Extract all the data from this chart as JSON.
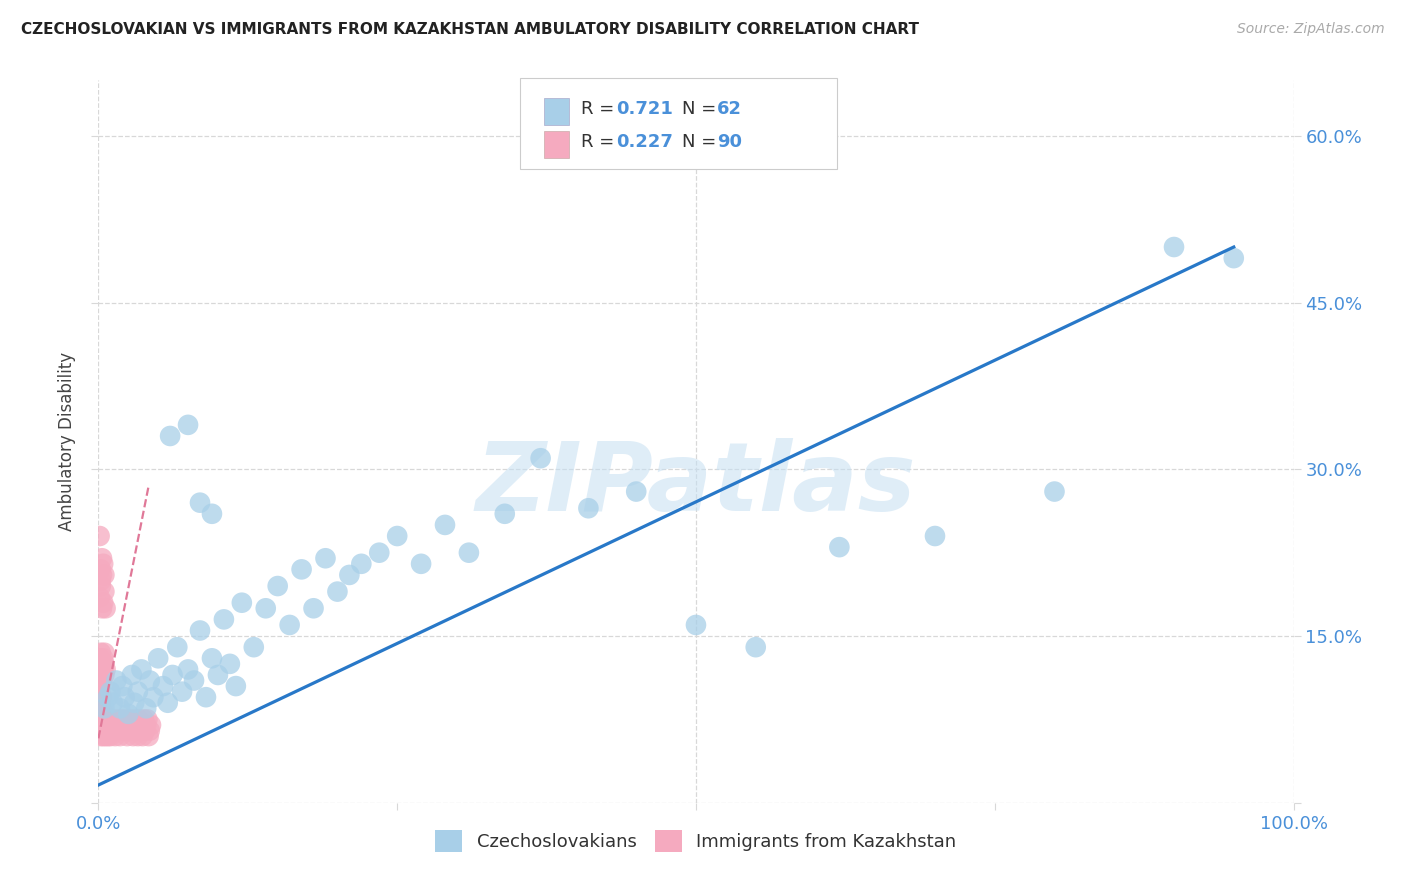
{
  "title": "CZECHOSLOVAKIAN VS IMMIGRANTS FROM KAZAKHSTAN AMBULATORY DISABILITY CORRELATION CHART",
  "source": "Source: ZipAtlas.com",
  "ylabel": "Ambulatory Disability",
  "background_color": "#ffffff",
  "grid_color": "#d8d8d8",
  "watermark": "ZIPatlas",
  "xmin": 0.0,
  "xmax": 1.0,
  "ymin": 0.0,
  "ymax": 0.65,
  "xticks": [
    0.0,
    0.25,
    0.5,
    0.75,
    1.0
  ],
  "xticklabels": [
    "0.0%",
    "",
    "",
    "",
    "100.0%"
  ],
  "ytick_vals": [
    0.0,
    0.15,
    0.3,
    0.45,
    0.6
  ],
  "yticklabels_right": [
    "",
    "15.0%",
    "30.0%",
    "45.0%",
    "60.0%"
  ],
  "tick_color": "#4a90d9",
  "blue_color": "#a8cfe8",
  "blue_line_color": "#2878c8",
  "pink_color": "#f5aabf",
  "pink_line_color": "#e07898",
  "legend_R_blue": "0.721",
  "legend_N_blue": "62",
  "legend_R_pink": "0.227",
  "legend_N_pink": "90",
  "legend_label_blue": "Czechoslovakians",
  "legend_label_pink": "Immigrants from Kazakhstan",
  "blue_scatter_x": [
    0.005,
    0.008,
    0.01,
    0.012,
    0.015,
    0.018,
    0.02,
    0.022,
    0.025,
    0.028,
    0.03,
    0.033,
    0.036,
    0.04,
    0.043,
    0.046,
    0.05,
    0.054,
    0.058,
    0.062,
    0.066,
    0.07,
    0.075,
    0.08,
    0.085,
    0.09,
    0.095,
    0.1,
    0.105,
    0.11,
    0.115,
    0.12,
    0.13,
    0.14,
    0.15,
    0.16,
    0.17,
    0.18,
    0.19,
    0.2,
    0.21,
    0.22,
    0.235,
    0.25,
    0.27,
    0.29,
    0.31,
    0.34,
    0.37,
    0.41,
    0.45,
    0.5,
    0.55,
    0.62,
    0.7,
    0.8,
    0.9,
    0.95,
    0.06,
    0.075,
    0.085,
    0.095
  ],
  "blue_scatter_y": [
    0.085,
    0.095,
    0.1,
    0.09,
    0.11,
    0.085,
    0.105,
    0.095,
    0.08,
    0.115,
    0.09,
    0.1,
    0.12,
    0.085,
    0.11,
    0.095,
    0.13,
    0.105,
    0.09,
    0.115,
    0.14,
    0.1,
    0.12,
    0.11,
    0.155,
    0.095,
    0.13,
    0.115,
    0.165,
    0.125,
    0.105,
    0.18,
    0.14,
    0.175,
    0.195,
    0.16,
    0.21,
    0.175,
    0.22,
    0.19,
    0.205,
    0.215,
    0.225,
    0.24,
    0.215,
    0.25,
    0.225,
    0.26,
    0.31,
    0.265,
    0.28,
    0.16,
    0.14,
    0.23,
    0.24,
    0.28,
    0.5,
    0.49,
    0.33,
    0.34,
    0.27,
    0.26
  ],
  "pink_scatter_x": [
    0.001,
    0.001,
    0.002,
    0.002,
    0.002,
    0.003,
    0.003,
    0.003,
    0.004,
    0.004,
    0.005,
    0.005,
    0.005,
    0.006,
    0.006,
    0.007,
    0.007,
    0.008,
    0.008,
    0.009,
    0.009,
    0.01,
    0.01,
    0.011,
    0.012,
    0.013,
    0.014,
    0.015,
    0.016,
    0.017,
    0.018,
    0.019,
    0.02,
    0.021,
    0.022,
    0.023,
    0.024,
    0.025,
    0.026,
    0.027,
    0.028,
    0.029,
    0.03,
    0.031,
    0.032,
    0.033,
    0.034,
    0.035,
    0.036,
    0.037,
    0.038,
    0.039,
    0.04,
    0.041,
    0.042,
    0.043,
    0.044,
    0.001,
    0.002,
    0.003,
    0.001,
    0.002,
    0.002,
    0.003,
    0.003,
    0.004,
    0.004,
    0.005,
    0.005,
    0.006,
    0.001,
    0.001,
    0.001,
    0.002,
    0.002,
    0.002,
    0.003,
    0.003,
    0.003,
    0.004,
    0.004,
    0.005,
    0.005,
    0.005,
    0.006,
    0.001,
    0.001,
    0.002,
    0.002,
    0.003
  ],
  "pink_scatter_y": [
    0.065,
    0.07,
    0.06,
    0.075,
    0.08,
    0.065,
    0.07,
    0.075,
    0.06,
    0.07,
    0.065,
    0.075,
    0.08,
    0.06,
    0.07,
    0.065,
    0.075,
    0.06,
    0.07,
    0.075,
    0.065,
    0.06,
    0.07,
    0.075,
    0.065,
    0.07,
    0.06,
    0.075,
    0.065,
    0.07,
    0.06,
    0.075,
    0.065,
    0.07,
    0.075,
    0.065,
    0.06,
    0.07,
    0.075,
    0.065,
    0.07,
    0.06,
    0.075,
    0.065,
    0.07,
    0.06,
    0.075,
    0.065,
    0.07,
    0.06,
    0.075,
    0.065,
    0.07,
    0.075,
    0.06,
    0.065,
    0.07,
    0.24,
    0.21,
    0.22,
    0.185,
    0.195,
    0.2,
    0.175,
    0.205,
    0.18,
    0.215,
    0.19,
    0.205,
    0.175,
    0.11,
    0.12,
    0.13,
    0.115,
    0.125,
    0.135,
    0.11,
    0.125,
    0.115,
    0.12,
    0.13,
    0.125,
    0.115,
    0.135,
    0.12,
    0.095,
    0.1,
    0.09,
    0.105,
    0.095
  ],
  "blue_trend_x0": 0.0,
  "blue_trend_x1": 0.95,
  "blue_trend_y0": 0.016,
  "blue_trend_y1": 0.5,
  "pink_trend_x0": 0.0,
  "pink_trend_x1": 0.042,
  "pink_trend_y0": 0.058,
  "pink_trend_y1": 0.285
}
